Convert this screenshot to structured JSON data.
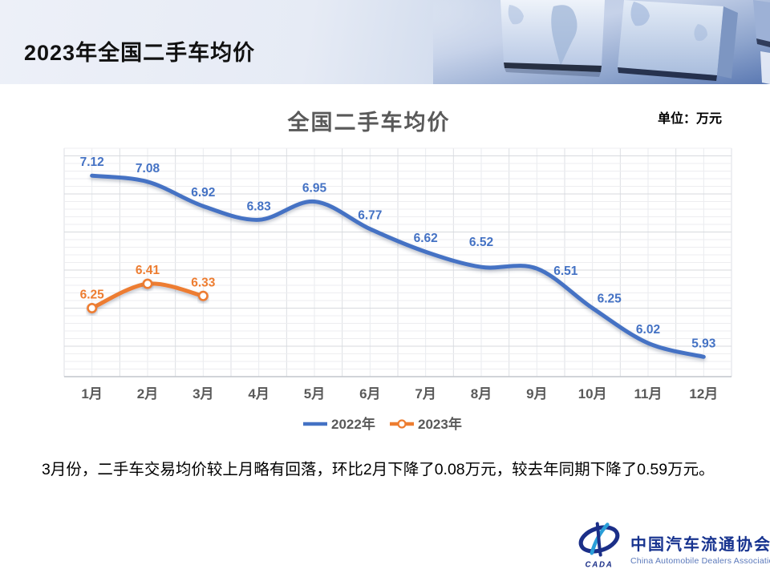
{
  "header": {
    "title": "2023年全国二手车均价"
  },
  "chart": {
    "title": "全国二手车均价",
    "unit_label": "单位：万元"
  },
  "chart_data": {
    "type": "line",
    "title": "全国二手车均价",
    "unit": "万元",
    "categories": [
      "1月",
      "2月",
      "3月",
      "4月",
      "5月",
      "6月",
      "7月",
      "8月",
      "9月",
      "10月",
      "11月",
      "12月"
    ],
    "series": [
      {
        "name": "2022年",
        "color": "#4472C4",
        "marker": false,
        "values": [
          7.12,
          7.08,
          6.92,
          6.83,
          6.95,
          6.77,
          6.62,
          6.52,
          6.51,
          6.25,
          6.02,
          5.93
        ]
      },
      {
        "name": "2023年",
        "color": "#ED7D31",
        "marker": true,
        "values": [
          6.25,
          6.41,
          6.33
        ]
      }
    ],
    "ylim": [
      5.8,
      7.3
    ],
    "grid": true,
    "legend_position": "bottom",
    "label_text_colors": {
      "2022年": "#4472C4",
      "2023年": "#ED7D31"
    },
    "axis_text_color": "#595959"
  },
  "summary": {
    "text": "3月份，二手车交易均价较上月略有回落，环比2月下降了0.08万元，较去年同期下降了0.59万元。"
  },
  "footer": {
    "org_cn": "中国汽车流通协会",
    "org_en": "China Automobile Dealers Association",
    "badge": "CADA"
  }
}
